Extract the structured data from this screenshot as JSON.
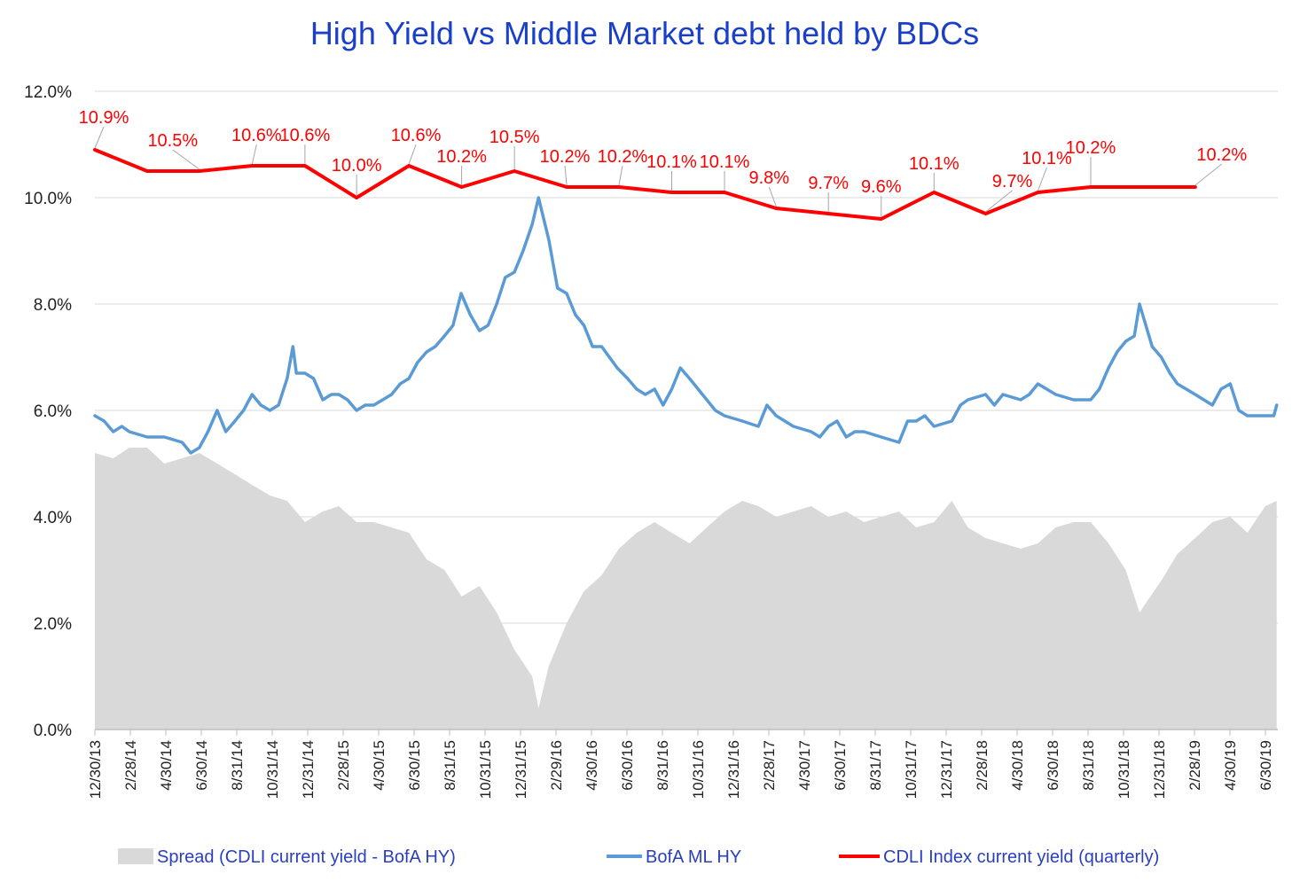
{
  "chart_data": {
    "type": "line",
    "title": "High Yield  vs  Middle Market debt held by BDCs",
    "xlabel": "",
    "ylabel": "",
    "ylim": [
      0,
      12
    ],
    "yticks": [
      "0.0%",
      "2.0%",
      "4.0%",
      "6.0%",
      "8.0%",
      "10.0%",
      "12.0%"
    ],
    "grid": true,
    "legend_position": "bottom",
    "x_tick_labels": [
      "12/30/13",
      "2/28/14",
      "4/30/14",
      "6/30/14",
      "8/31/14",
      "10/31/14",
      "12/31/14",
      "2/28/15",
      "4/30/15",
      "6/30/15",
      "8/31/15",
      "10/31/15",
      "12/31/15",
      "2/29/16",
      "4/30/16",
      "6/30/16",
      "8/31/16",
      "10/31/16",
      "12/31/16",
      "2/28/17",
      "4/30/17",
      "6/30/17",
      "8/31/17",
      "10/31/17",
      "12/31/17",
      "2/28/18",
      "4/30/18",
      "6/30/18",
      "8/31/18",
      "10/31/18",
      "12/31/18",
      "2/28/19",
      "4/30/19",
      "6/30/19"
    ],
    "series": [
      {
        "name": "Spread (CDLI current yield - BofA HY)",
        "kind": "area",
        "color": "#d9d9d9",
        "x": [
          "2013-12-30",
          "2014-01-31",
          "2014-02-28",
          "2014-03-31",
          "2014-04-30",
          "2014-05-31",
          "2014-06-30",
          "2014-07-31",
          "2014-08-31",
          "2014-09-30",
          "2014-10-31",
          "2014-11-30",
          "2014-12-31",
          "2015-01-31",
          "2015-02-28",
          "2015-03-31",
          "2015-04-30",
          "2015-05-31",
          "2015-06-30",
          "2015-07-31",
          "2015-08-31",
          "2015-09-30",
          "2015-10-31",
          "2015-11-30",
          "2015-12-31",
          "2016-01-31",
          "2016-02-11",
          "2016-02-29",
          "2016-03-31",
          "2016-04-30",
          "2016-05-31",
          "2016-06-30",
          "2016-07-31",
          "2016-08-31",
          "2016-09-30",
          "2016-10-31",
          "2016-11-30",
          "2016-12-31",
          "2017-01-31",
          "2017-02-28",
          "2017-03-31",
          "2017-04-30",
          "2017-05-31",
          "2017-06-30",
          "2017-07-31",
          "2017-08-31",
          "2017-09-30",
          "2017-10-31",
          "2017-11-30",
          "2017-12-31",
          "2018-01-31",
          "2018-02-28",
          "2018-03-31",
          "2018-04-30",
          "2018-05-31",
          "2018-06-30",
          "2018-07-31",
          "2018-08-31",
          "2018-09-30",
          "2018-10-31",
          "2018-11-30",
          "2018-12-24",
          "2019-01-31",
          "2019-02-28",
          "2019-03-31",
          "2019-04-30",
          "2019-05-31",
          "2019-06-30",
          "2019-07-31",
          "2019-08-20"
        ],
        "values": [
          5.2,
          5.1,
          5.3,
          5.3,
          5.0,
          5.1,
          5.2,
          5.0,
          4.8,
          4.6,
          4.4,
          4.3,
          3.9,
          4.1,
          4.2,
          3.9,
          3.9,
          3.8,
          3.7,
          3.2,
          3.0,
          2.5,
          2.7,
          2.2,
          1.5,
          1.0,
          0.4,
          1.2,
          2.0,
          2.6,
          2.9,
          3.4,
          3.7,
          3.9,
          3.7,
          3.5,
          3.8,
          4.1,
          4.3,
          4.2,
          4.0,
          4.1,
          4.2,
          4.0,
          4.1,
          3.9,
          4.0,
          4.1,
          3.8,
          3.9,
          4.3,
          3.8,
          3.6,
          3.5,
          3.4,
          3.5,
          3.8,
          3.9,
          3.9,
          3.5,
          3.0,
          2.2,
          2.8,
          3.3,
          3.6,
          3.9,
          4.0,
          3.7,
          4.2,
          4.3
        ]
      },
      {
        "name": "BofA ML HY",
        "kind": "line",
        "color": "#5b9bd5",
        "x": [
          "2013-12-30",
          "2014-01-15",
          "2014-01-31",
          "2014-02-15",
          "2014-02-28",
          "2014-03-31",
          "2014-04-30",
          "2014-05-31",
          "2014-06-15",
          "2014-06-30",
          "2014-07-15",
          "2014-07-31",
          "2014-08-15",
          "2014-08-31",
          "2014-09-15",
          "2014-09-30",
          "2014-10-15",
          "2014-10-31",
          "2014-11-15",
          "2014-11-30",
          "2014-12-10",
          "2014-12-16",
          "2014-12-31",
          "2015-01-15",
          "2015-01-31",
          "2015-02-15",
          "2015-02-28",
          "2015-03-15",
          "2015-03-31",
          "2015-04-15",
          "2015-04-30",
          "2015-05-31",
          "2015-06-15",
          "2015-06-30",
          "2015-07-15",
          "2015-07-31",
          "2015-08-15",
          "2015-08-31",
          "2015-09-15",
          "2015-09-29",
          "2015-10-15",
          "2015-10-31",
          "2015-11-15",
          "2015-11-30",
          "2015-12-15",
          "2015-12-31",
          "2016-01-15",
          "2016-01-31",
          "2016-02-11",
          "2016-02-29",
          "2016-03-15",
          "2016-03-31",
          "2016-04-15",
          "2016-04-30",
          "2016-05-15",
          "2016-05-31",
          "2016-06-27",
          "2016-07-15",
          "2016-07-31",
          "2016-08-15",
          "2016-08-31",
          "2016-09-15",
          "2016-09-30",
          "2016-10-15",
          "2016-10-31",
          "2016-11-15",
          "2016-11-30",
          "2016-12-15",
          "2016-12-31",
          "2017-01-31",
          "2017-02-28",
          "2017-03-15",
          "2017-03-31",
          "2017-04-30",
          "2017-05-31",
          "2017-06-15",
          "2017-06-30",
          "2017-07-15",
          "2017-07-31",
          "2017-08-15",
          "2017-08-31",
          "2017-09-30",
          "2017-10-31",
          "2017-11-15",
          "2017-11-30",
          "2017-12-15",
          "2017-12-31",
          "2018-01-31",
          "2018-02-15",
          "2018-02-28",
          "2018-03-31",
          "2018-04-15",
          "2018-04-30",
          "2018-05-31",
          "2018-06-15",
          "2018-06-30",
          "2018-07-31",
          "2018-08-31",
          "2018-09-30",
          "2018-10-15",
          "2018-10-31",
          "2018-11-15",
          "2018-11-30",
          "2018-12-15",
          "2018-12-24",
          "2019-01-15",
          "2019-01-31",
          "2019-02-15",
          "2019-02-28",
          "2019-03-31",
          "2019-04-30",
          "2019-05-15",
          "2019-05-31",
          "2019-06-15",
          "2019-06-30",
          "2019-07-31",
          "2019-08-15",
          "2019-08-20"
        ],
        "values": [
          5.9,
          5.8,
          5.6,
          5.7,
          5.6,
          5.5,
          5.5,
          5.4,
          5.2,
          5.3,
          5.6,
          6.0,
          5.6,
          5.8,
          6.0,
          6.3,
          6.1,
          6.0,
          6.1,
          6.6,
          7.2,
          6.7,
          6.7,
          6.6,
          6.2,
          6.3,
          6.3,
          6.2,
          6.0,
          6.1,
          6.1,
          6.3,
          6.5,
          6.6,
          6.9,
          7.1,
          7.2,
          7.4,
          7.6,
          8.2,
          7.8,
          7.5,
          7.6,
          8.0,
          8.5,
          8.6,
          9.0,
          9.5,
          10.0,
          9.2,
          8.3,
          8.2,
          7.8,
          7.6,
          7.2,
          7.2,
          6.8,
          6.6,
          6.4,
          6.3,
          6.4,
          6.1,
          6.4,
          6.8,
          6.6,
          6.4,
          6.2,
          6.0,
          5.9,
          5.8,
          5.7,
          6.1,
          5.9,
          5.7,
          5.6,
          5.5,
          5.7,
          5.8,
          5.5,
          5.6,
          5.6,
          5.5,
          5.4,
          5.8,
          5.8,
          5.9,
          5.7,
          5.8,
          6.1,
          6.2,
          6.3,
          6.1,
          6.3,
          6.2,
          6.3,
          6.5,
          6.3,
          6.2,
          6.2,
          6.4,
          6.8,
          7.1,
          7.3,
          7.4,
          8.0,
          7.2,
          7.0,
          6.7,
          6.5,
          6.3,
          6.1,
          6.4,
          6.5,
          6.0,
          5.9,
          5.9,
          5.9,
          6.1
        ]
      },
      {
        "name": "CDLI Index current yield (quarterly)",
        "kind": "line",
        "color": "#ff0000",
        "x": [
          "2013-12-30",
          "2014-03-31",
          "2014-06-30",
          "2014-09-30",
          "2014-12-31",
          "2015-03-31",
          "2015-06-30",
          "2015-09-30",
          "2015-12-31",
          "2016-03-31",
          "2016-06-30",
          "2016-09-30",
          "2016-12-31",
          "2017-03-31",
          "2017-06-30",
          "2017-09-30",
          "2017-12-31",
          "2018-03-31",
          "2018-06-30",
          "2018-09-30",
          "2018-12-31",
          "2019-03-31"
        ],
        "values": [
          10.9,
          10.5,
          10.5,
          10.6,
          10.6,
          10.0,
          10.6,
          10.2,
          10.5,
          10.2,
          10.2,
          10.1,
          10.1,
          9.8,
          9.7,
          9.6,
          10.1,
          9.7,
          10.1,
          10.2,
          10.2,
          10.2
        ],
        "labels": [
          "10.9%",
          "10.5%",
          "10.6%",
          "10.6%",
          "10.0%",
          "10.6%",
          "10.2%",
          "10.5%",
          "10.2%",
          "10.2%",
          "10.1%",
          "10.1%",
          "9.8%",
          "9.7%",
          "9.6%",
          "10.1%",
          "9.7%",
          "10.1%",
          "10.2%",
          "10.2%"
        ],
        "label_points": [
          "2013-12-30",
          "2014-06-30",
          "2014-09-30",
          "2014-12-31",
          "2015-03-31",
          "2015-06-30",
          "2015-09-30",
          "2015-12-31",
          "2016-03-31",
          "2016-06-30",
          "2016-09-30",
          "2016-12-31",
          "2017-03-31",
          "2017-06-30",
          "2017-09-30",
          "2017-12-31",
          "2018-03-31",
          "2018-06-30",
          "2018-09-30",
          "2019-03-31"
        ]
      }
    ]
  }
}
